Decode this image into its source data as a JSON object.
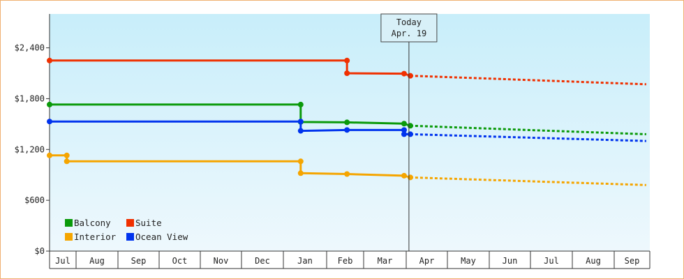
{
  "chart_data": {
    "type": "line",
    "title": "",
    "xlabel": "",
    "ylabel": "",
    "ylim": [
      0,
      2800
    ],
    "yticks": [
      {
        "value": 0,
        "label": "$0"
      },
      {
        "value": 600,
        "label": "$600"
      },
      {
        "value": 1200,
        "label": "$1,200"
      },
      {
        "value": 1800,
        "label": "$1,800"
      },
      {
        "value": 2400,
        "label": "$2,400"
      }
    ],
    "x_start": "Jul",
    "x_end": "Sep",
    "months": [
      "Jul",
      "Aug",
      "Sep",
      "Oct",
      "Nov",
      "Dec",
      "Jan",
      "Feb",
      "Mar",
      "Apr",
      "May",
      "Jun",
      "Jul",
      "Aug",
      "Sep"
    ],
    "today": {
      "title": "Today",
      "label": "Apr. 19",
      "month_index": 9.1
    },
    "step": true,
    "grid": false,
    "legend_position": "bottom-left",
    "series": [
      {
        "name": "Balcony",
        "color": "#0a9a0a",
        "points": [
          [
            0,
            1730
          ],
          [
            6.4,
            1730
          ],
          [
            6.4,
            1525
          ],
          [
            7.55,
            1520
          ],
          [
            8.95,
            1505
          ],
          [
            9.1,
            1480
          ]
        ],
        "forecast": [
          [
            9.1,
            1480
          ],
          [
            14.9,
            1380
          ]
        ]
      },
      {
        "name": "Suite",
        "color": "#f03000",
        "points": [
          [
            0,
            2250
          ],
          [
            7.55,
            2250
          ],
          [
            7.55,
            2100
          ],
          [
            8.95,
            2095
          ],
          [
            9.1,
            2070
          ]
        ],
        "forecast": [
          [
            9.1,
            2070
          ],
          [
            14.9,
            1970
          ]
        ]
      },
      {
        "name": "Interior",
        "color": "#f5a500",
        "points": [
          [
            0,
            1130
          ],
          [
            0.65,
            1130
          ],
          [
            0.65,
            1060
          ],
          [
            6.4,
            1060
          ],
          [
            6.4,
            920
          ],
          [
            7.55,
            910
          ],
          [
            8.95,
            890
          ],
          [
            9.1,
            870
          ]
        ],
        "forecast": [
          [
            9.1,
            870
          ],
          [
            14.9,
            780
          ]
        ]
      },
      {
        "name": "Ocean View",
        "color": "#0033ee",
        "points": [
          [
            0,
            1530
          ],
          [
            6.4,
            1530
          ],
          [
            6.4,
            1420
          ],
          [
            7.55,
            1430
          ],
          [
            8.95,
            1430
          ],
          [
            8.95,
            1380
          ],
          [
            9.1,
            1380
          ]
        ],
        "forecast": [
          [
            9.1,
            1380
          ],
          [
            14.9,
            1300
          ]
        ]
      }
    ]
  }
}
